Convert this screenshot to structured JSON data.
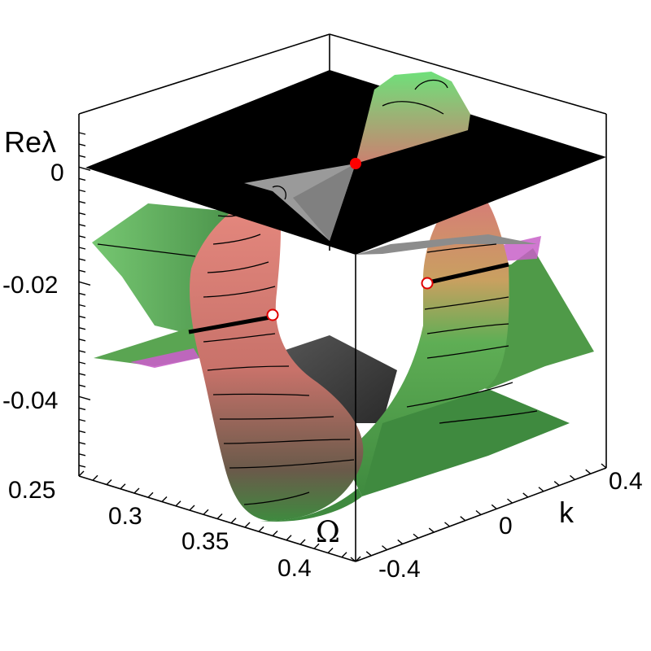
{
  "chart_data": {
    "type": "surface3d",
    "axes": {
      "z": {
        "label": "Reλ",
        "ticks": [
          "0",
          "-0.02",
          "-0.04"
        ],
        "tick_values": [
          0,
          -0.02,
          -0.04
        ]
      },
      "omega": {
        "label": "Ω",
        "ticks": [
          "0.25",
          "0.3",
          "0.35",
          "0.4"
        ],
        "tick_values": [
          0.25,
          0.3,
          0.35,
          0.4
        ]
      },
      "k": {
        "label": "k",
        "ticks": [
          "-0.4",
          "0",
          "0.4"
        ],
        "tick_values": [
          -0.4,
          0,
          0.4
        ]
      }
    },
    "ranges": {
      "omega": [
        0.25,
        0.42
      ],
      "k": [
        -0.4,
        0.4
      ],
      "re_lambda": [
        -0.055,
        0.01
      ]
    },
    "surfaces": [
      {
        "name": "plane Reλ = 0",
        "color": "#000000"
      },
      {
        "name": "instability tube",
        "colors": [
          "#e07870",
          "#5fa04f",
          "#7fe07f",
          "#9a9a9a",
          "#d070d0"
        ]
      }
    ],
    "markers": [
      {
        "kind": "filled",
        "color": "#ff0000",
        "re_lambda": 0
      },
      {
        "kind": "open",
        "color": "#ff0000",
        "re_lambda": -0.027
      },
      {
        "kind": "open",
        "color": "#ff0000",
        "re_lambda": -0.02
      }
    ],
    "grid": false,
    "legend": "none"
  }
}
